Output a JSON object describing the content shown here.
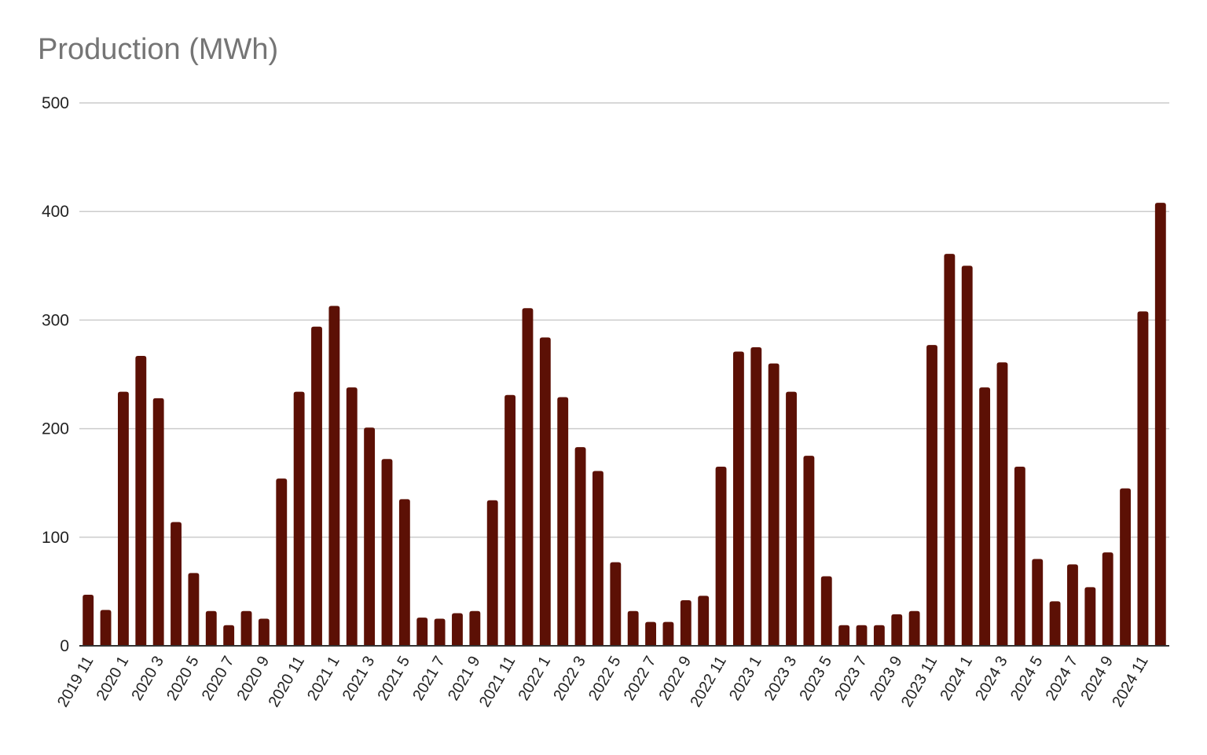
{
  "chart_data": {
    "type": "bar",
    "title": "Production (MWh)",
    "xlabel": "",
    "ylabel": "",
    "ylim": [
      0,
      500
    ],
    "yticks": [
      0,
      100,
      200,
      300,
      400,
      500
    ],
    "grid": true,
    "bar_color": "#5c1005",
    "grid_color": "#cccccc",
    "axis_color": "#333333",
    "categories": [
      "2019 11",
      "2019 12",
      "2020 1",
      "2020 2",
      "2020 3",
      "2020 4",
      "2020 5",
      "2020 6",
      "2020 7",
      "2020 8",
      "2020 9",
      "2020 10",
      "2020 11",
      "2020 12",
      "2021 1",
      "2021 2",
      "2021 3",
      "2021 4",
      "2021 5",
      "2021 6",
      "2021 7",
      "2021 8",
      "2021 9",
      "2021 10",
      "2021 11",
      "2021 12",
      "2022 1",
      "2022 2",
      "2022 3",
      "2022 4",
      "2022 5",
      "2022 6",
      "2022 7",
      "2022 8",
      "2022 9",
      "2022 10",
      "2022 11",
      "2022 12",
      "2023 1",
      "2023 2",
      "2023 3",
      "2023 4",
      "2023 5",
      "2023 6",
      "2023 7",
      "2023 8",
      "2023 9",
      "2023 10",
      "2023 11",
      "2023 12",
      "2024 1",
      "2024 2",
      "2024 3",
      "2024 4",
      "2024 5",
      "2024 6",
      "2024 7",
      "2024 8",
      "2024 9",
      "2024 10",
      "2024 11",
      "2024 12"
    ],
    "values": [
      47,
      33,
      234,
      267,
      228,
      114,
      67,
      32,
      19,
      32,
      25,
      154,
      234,
      294,
      313,
      238,
      201,
      172,
      135,
      26,
      25,
      30,
      32,
      134,
      231,
      311,
      284,
      229,
      183,
      161,
      77,
      32,
      22,
      22,
      42,
      46,
      165,
      271,
      275,
      260,
      234,
      175,
      64,
      19,
      19,
      19,
      29,
      32,
      277,
      361,
      350,
      238,
      261,
      165,
      80,
      41,
      75,
      54,
      86,
      145,
      308,
      408
    ],
    "x_tick_labels": [
      "2019 11",
      "2020 1",
      "2020 3",
      "2020 5",
      "2020 7",
      "2020 9",
      "2020 11",
      "2021 1",
      "2021 3",
      "2021 5",
      "2021 7",
      "2021 9",
      "2021 11",
      "2022 1",
      "2022 3",
      "2022 5",
      "2022 7",
      "2022 9",
      "2022 11",
      "2023 1",
      "2023 3",
      "2023 5",
      "2023 7",
      "2023 9",
      "2023 11",
      "2024 1",
      "2024 3",
      "2024 5",
      "2024 7",
      "2024 9",
      "2024 11"
    ]
  }
}
